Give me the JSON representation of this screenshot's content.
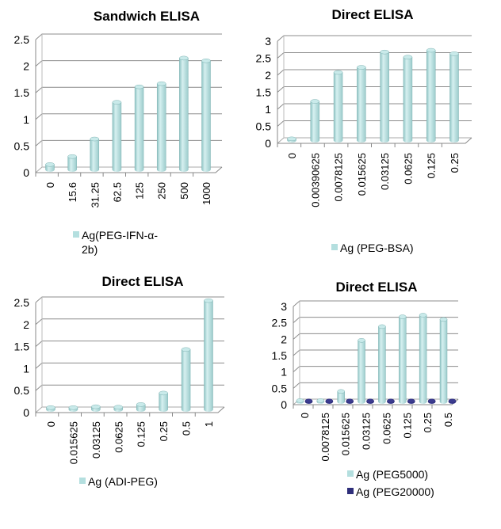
{
  "colors": {
    "bar": "#b4dfdf",
    "bar_edge": "#7fb3b3",
    "bar2": "#2e2e7a",
    "grid": "#8c8c8c"
  },
  "chart_data": [
    {
      "type": "bar",
      "style": "3d-cylinder",
      "title": "Sandwich ELISA",
      "categories": [
        "0",
        "15.6",
        "31.25",
        "62.5",
        "125",
        "250",
        "500",
        "1000"
      ],
      "series": [
        {
          "name": "Ag(PEG-IFN-α-2b)",
          "legend_lines": [
            "Ag(PEG-IFN-α-",
            "2b)"
          ],
          "values": [
            0.1,
            0.25,
            0.58,
            1.27,
            1.56,
            1.62,
            2.1,
            2.05
          ]
        }
      ],
      "yticks": [
        "0",
        "0.5",
        "1",
        "1.5",
        "2",
        "2.5"
      ],
      "ylim": [
        0,
        2.5
      ],
      "grid": true,
      "legend": "bottom"
    },
    {
      "type": "bar",
      "style": "3d-cylinder",
      "title": "Direct ELISA",
      "categories": [
        "0",
        "0.00390625",
        "0.0078125",
        "0.015625",
        "0.03125",
        "0.0625",
        "0.125",
        "0.25"
      ],
      "series": [
        {
          "name": "Ag (PEG-BSA)",
          "legend_lines": [
            "Ag (PEG-BSA)"
          ],
          "values": [
            0.05,
            1.15,
            2.0,
            2.15,
            2.6,
            2.45,
            2.65,
            2.55
          ]
        }
      ],
      "yticks": [
        "0",
        "0.5",
        "1",
        "1.5",
        "2",
        "2.5",
        "3"
      ],
      "ylim": [
        0,
        3
      ],
      "grid": true,
      "legend": "bottom"
    },
    {
      "type": "bar",
      "style": "3d-cylinder",
      "title": "Direct ELISA",
      "categories": [
        "0",
        "0.015625",
        "0.03125",
        "0.0625",
        "0.125",
        "0.25",
        "0.5",
        "1"
      ],
      "series": [
        {
          "name": "Ag (ADI-PEG)",
          "legend_lines": [
            "Ag (ADI-PEG)"
          ],
          "values": [
            0.05,
            0.05,
            0.07,
            0.06,
            0.12,
            0.38,
            1.37,
            2.48
          ]
        }
      ],
      "yticks": [
        "0",
        "0.5",
        "1",
        "1.5",
        "2",
        "2.5"
      ],
      "ylim": [
        0,
        2.5
      ],
      "grid": true,
      "legend": "bottom"
    },
    {
      "type": "bar",
      "style": "3d-cylinder",
      "title": "Direct ELISA",
      "categories": [
        "0",
        "0.0078125",
        "0.015625",
        "0.03125",
        "0.0625",
        "0.125",
        "0.25",
        "0.5"
      ],
      "series": [
        {
          "name": "Ag (PEG5000)",
          "legend_lines": [
            "Ag (PEG5000)"
          ],
          "values": [
            0.04,
            0.04,
            0.32,
            1.88,
            2.3,
            2.6,
            2.65,
            2.52
          ]
        },
        {
          "name": "Ag (PEG20000)",
          "legend_lines": [
            "Ag (PEG20000)"
          ],
          "values": [
            0.03,
            0.03,
            0.03,
            0.03,
            0.03,
            0.03,
            0.03,
            0.03
          ]
        }
      ],
      "yticks": [
        "0",
        "0.5",
        "1",
        "1.5",
        "2",
        "2.5",
        "3"
      ],
      "ylim": [
        0,
        3
      ],
      "grid": true,
      "legend": "bottom"
    }
  ]
}
